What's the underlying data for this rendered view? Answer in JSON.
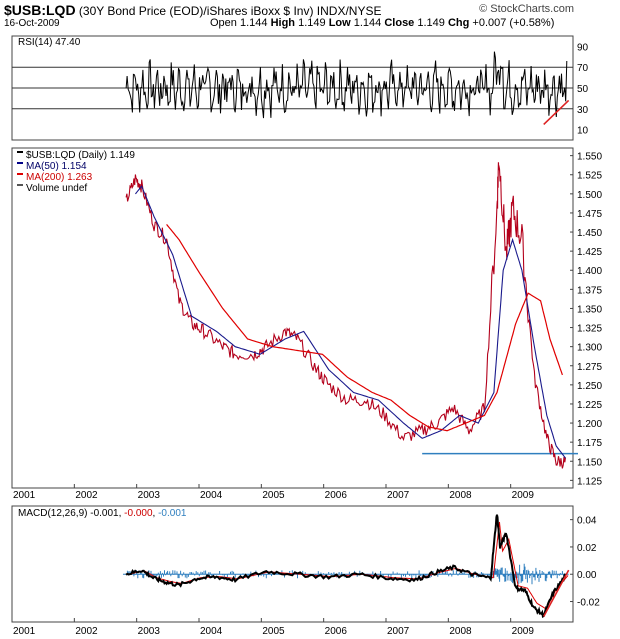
{
  "header": {
    "symbol": "$USB:LQD",
    "description": "(30Y Bond Price (EOD)/iShares iBoxx $ Inv)",
    "exchange": "INDX/NYSE",
    "date": "16-Oct-2009",
    "open_label": "Open",
    "open": "1.144",
    "high_label": "High",
    "high": "1.149",
    "low_label": "Low",
    "low": "1.144",
    "close_label": "Close",
    "close": "1.149",
    "chg_label": "Chg",
    "chg": "+0.007 (+0.58%)",
    "brand": "© StockCharts.com"
  },
  "chart_data": [
    {
      "panel": "rsi",
      "type": "line",
      "title": "RSI(14) 47.40",
      "ylim": [
        0,
        100
      ],
      "y_ticks": [
        "90",
        "70",
        "50",
        "30",
        "10"
      ],
      "reference_lines": [
        70,
        50,
        30
      ],
      "series": [
        {
          "name": "RSI(14)",
          "last": 47.4,
          "oscillation_band": [
            20,
            85
          ]
        }
      ],
      "trendline": {
        "from": {
          "x": 2009.45,
          "y": 15
        },
        "to": {
          "x": 2009.85,
          "y": 38
        },
        "color": "#dd2222"
      }
    },
    {
      "panel": "price",
      "type": "line",
      "legend": [
        {
          "label": "$USB:LQD (Daily) 1.149",
          "color": "#000000"
        },
        {
          "label": "MA(50) 1.154",
          "color": "#000088"
        },
        {
          "label": "MA(200) 1.263",
          "color": "#dd0000"
        },
        {
          "label": "Volume undef",
          "color": "#555555"
        }
      ],
      "ylim": [
        1.115,
        1.56
      ],
      "y_ticks": [
        "1.550",
        "1.525",
        "1.500",
        "1.475",
        "1.450",
        "1.425",
        "1.400",
        "1.375",
        "1.350",
        "1.325",
        "1.300",
        "1.275",
        "1.250",
        "1.225",
        "1.200",
        "1.175",
        "1.150",
        "1.125"
      ],
      "x_labels": [
        "2001",
        "2002",
        "2003",
        "2004",
        "2005",
        "2006",
        "2007",
        "2008",
        "2009"
      ],
      "series": [
        {
          "name": "$USB:LQD",
          "x": [
            2002.75,
            2002.9,
            2003.0,
            2003.2,
            2003.4,
            2003.6,
            2003.8,
            2004.0,
            2004.3,
            2004.5,
            2004.8,
            2005.0,
            2005.3,
            2005.5,
            2005.8,
            2006.0,
            2006.3,
            2006.6,
            2006.9,
            2007.2,
            2007.5,
            2007.75,
            2008.0,
            2008.25,
            2008.5,
            2008.7,
            2008.73,
            2008.85,
            2008.95,
            2009.1,
            2009.3,
            2009.5,
            2009.65,
            2009.8
          ],
          "values": [
            1.49,
            1.52,
            1.51,
            1.46,
            1.44,
            1.36,
            1.33,
            1.32,
            1.3,
            1.29,
            1.29,
            1.3,
            1.32,
            1.31,
            1.27,
            1.25,
            1.23,
            1.23,
            1.21,
            1.18,
            1.19,
            1.2,
            1.22,
            1.19,
            1.22,
            1.48,
            1.55,
            1.42,
            1.48,
            1.44,
            1.26,
            1.18,
            1.15,
            1.149
          ]
        },
        {
          "name": "MA(50)",
          "x": [
            2002.9,
            2003.0,
            2003.2,
            2003.5,
            2003.8,
            2004.2,
            2004.5,
            2004.9,
            2005.3,
            2005.6,
            2006.0,
            2006.4,
            2006.8,
            2007.2,
            2007.5,
            2007.8,
            2008.1,
            2008.4,
            2008.65,
            2008.8,
            2008.95,
            2009.1,
            2009.3,
            2009.5,
            2009.65,
            2009.8
          ],
          "values": [
            1.5,
            1.51,
            1.47,
            1.42,
            1.34,
            1.32,
            1.3,
            1.29,
            1.31,
            1.32,
            1.27,
            1.24,
            1.23,
            1.2,
            1.18,
            1.19,
            1.21,
            1.2,
            1.24,
            1.4,
            1.44,
            1.4,
            1.3,
            1.21,
            1.17,
            1.154
          ]
        },
        {
          "name": "MA(200)",
          "x": [
            2003.4,
            2003.6,
            2003.9,
            2004.3,
            2004.7,
            2005.1,
            2005.5,
            2005.9,
            2006.3,
            2006.7,
            2007.0,
            2007.3,
            2007.6,
            2007.9,
            2008.2,
            2008.5,
            2008.7,
            2008.9,
            2009.0,
            2009.2,
            2009.4,
            2009.55,
            2009.75
          ],
          "values": [
            1.46,
            1.44,
            1.4,
            1.35,
            1.31,
            1.3,
            1.295,
            1.29,
            1.26,
            1.24,
            1.23,
            1.21,
            1.195,
            1.19,
            1.2,
            1.21,
            1.24,
            1.3,
            1.33,
            1.37,
            1.36,
            1.31,
            1.263
          ]
        }
      ],
      "support_line": {
        "y": 1.16,
        "from_x": 2007.5,
        "to_x": 2010.0,
        "color": "#2f7fbf"
      }
    },
    {
      "panel": "macd",
      "type": "line",
      "title": "MACD(12,26,9) -0.001, -0.000, -0.001",
      "title_parts": [
        "MACD(12,26,9) -0.001, ",
        "-0.000",
        ", ",
        "-0.001"
      ],
      "ylim": [
        -0.035,
        0.05
      ],
      "y_ticks": [
        "0.04",
        "0.02",
        "0.00",
        "-0.02"
      ],
      "x_labels": [
        "2001",
        "2002",
        "2003",
        "2004",
        "2005",
        "2006",
        "2007",
        "2008",
        "2009"
      ],
      "series": [
        {
          "name": "MACD",
          "color": "#000000",
          "x": [
            2002.75,
            2003.0,
            2003.2,
            2003.4,
            2003.6,
            2003.9,
            2004.2,
            2004.5,
            2005.0,
            2005.5,
            2006.0,
            2006.5,
            2007.0,
            2007.4,
            2007.7,
            2008.0,
            2008.3,
            2008.6,
            2008.7,
            2008.75,
            2008.85,
            2009.0,
            2009.15,
            2009.3,
            2009.45,
            2009.6,
            2009.8
          ],
          "values": [
            0.0,
            0.003,
            -0.003,
            -0.006,
            -0.008,
            -0.003,
            -0.002,
            -0.004,
            0.002,
            0.0,
            -0.002,
            0.0,
            -0.003,
            -0.004,
            0.001,
            0.005,
            0.0,
            -0.003,
            0.045,
            0.02,
            0.03,
            -0.01,
            -0.012,
            -0.025,
            -0.03,
            -0.014,
            -0.001
          ]
        },
        {
          "name": "Signal",
          "color": "#dd0000",
          "values_last": -0.0
        },
        {
          "name": "Histogram",
          "color": "#2f7fbf",
          "values_last": -0.001
        }
      ],
      "trendline": {
        "from": {
          "x": 2009.45,
          "y": -0.031
        },
        "to": {
          "x": 2009.85,
          "y": 0.003
        },
        "color": "#dd2222"
      }
    }
  ]
}
